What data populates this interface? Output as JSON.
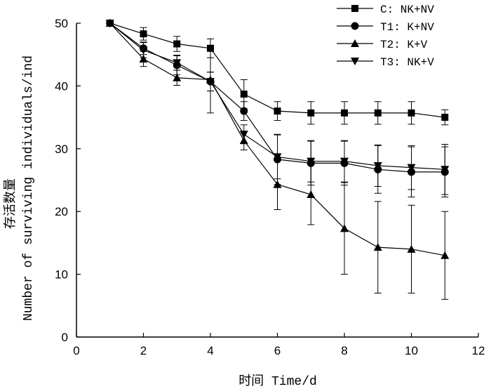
{
  "chart_data": {
    "type": "line",
    "title": "",
    "xlabel": "时间 Time/d",
    "ylabel_cn": "存活数量",
    "ylabel": "Number of surviving individuals/ind",
    "xlim": [
      0,
      12
    ],
    "ylim": [
      0,
      50
    ],
    "xticks": [
      0,
      2,
      4,
      6,
      8,
      10,
      12
    ],
    "yticks": [
      0,
      10,
      20,
      30,
      40,
      50
    ],
    "grid": false,
    "legend_position": "top-right",
    "x": [
      1,
      2,
      3,
      4,
      5,
      6,
      7,
      8,
      9,
      10,
      11
    ],
    "series": [
      {
        "name": "C: NK+NV",
        "marker": "square",
        "values": [
          50,
          48.3,
          46.7,
          46,
          38.7,
          36,
          35.7,
          35.7,
          35.7,
          35.7,
          35
        ],
        "errors": [
          0,
          1,
          1.2,
          1.5,
          2.3,
          1.5,
          1.8,
          1.8,
          1.8,
          1.8,
          1.2
        ]
      },
      {
        "name": "T1: K+NV",
        "marker": "circle",
        "values": [
          50,
          46,
          43.3,
          40.7,
          36,
          28.3,
          27.7,
          27.7,
          26.7,
          26.3,
          26.3
        ],
        "errors": [
          0,
          1,
          1.5,
          1.5,
          1.5,
          4,
          3.5,
          3.5,
          3.8,
          4,
          4
        ]
      },
      {
        "name": "T2: K+V",
        "marker": "triangle-up",
        "values": [
          50,
          44.3,
          41.3,
          41,
          31.3,
          24.3,
          22.7,
          17.3,
          14.3,
          14,
          13
        ],
        "errors": [
          0,
          1.2,
          1.2,
          5.3,
          1.5,
          4,
          4.8,
          7.3,
          7.3,
          7,
          7
        ]
      },
      {
        "name": "T3: NK+V",
        "marker": "triangle-down",
        "values": [
          50,
          45.7,
          43.7,
          40.7,
          32.3,
          28.7,
          28,
          28,
          27.3,
          27,
          26.7
        ],
        "errors": [
          0,
          1.2,
          1.2,
          1.5,
          1.5,
          3.5,
          3.3,
          3.3,
          3.3,
          3.5,
          4
        ]
      }
    ]
  }
}
